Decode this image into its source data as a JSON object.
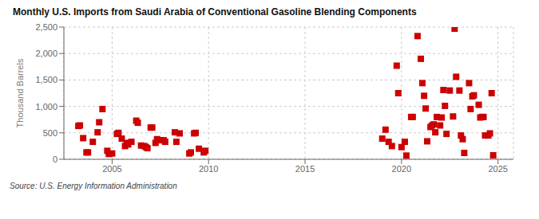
{
  "chart_data": {
    "type": "scatter",
    "title": "Monthly U.S. Imports from Saudi Arabia of Conventional Gasoline Blending Components",
    "ylabel": "Thousand Barrels",
    "annotations": [
      "Source: U.S. Energy Information Administration"
    ],
    "color": "#cc0000",
    "marker": "square",
    "grid": true,
    "xlim": [
      2002.5,
      2025.8
    ],
    "xticks": [
      2005,
      2010,
      2015,
      2020,
      2025
    ],
    "ylim": [
      0,
      2500
    ],
    "yticks": [
      0,
      500,
      {
        "value": 1000,
        "label": "1,000"
      },
      {
        "value": 1500,
        "label": "1,500"
      },
      {
        "value": 2000,
        "label": "2,000"
      },
      {
        "value": 2500,
        "label": "2,500"
      }
    ],
    "x": [
      2003.25,
      2003.33,
      2003.5,
      2003.67,
      2003.75,
      2004.0,
      2004.25,
      2004.33,
      2004.5,
      2004.75,
      2004.83,
      2005.0,
      2005.25,
      2005.33,
      2005.5,
      2005.67,
      2005.75,
      2005.83,
      2006.0,
      2006.25,
      2006.33,
      2006.5,
      2006.67,
      2006.75,
      2006.83,
      2007.0,
      2007.08,
      2007.25,
      2007.33,
      2007.5,
      2007.67,
      2007.75,
      2008.25,
      2008.33,
      2008.5,
      2009.0,
      2009.08,
      2009.25,
      2009.33,
      2009.5,
      2009.75,
      2009.83,
      2019.0,
      2019.17,
      2019.33,
      2019.5,
      2019.75,
      2019.83,
      2020.0,
      2020.17,
      2020.25,
      2020.5,
      2020.58,
      2020.83,
      2021.0,
      2021.08,
      2021.17,
      2021.25,
      2021.33,
      2021.5,
      2021.58,
      2021.67,
      2021.75,
      2021.83,
      2022.0,
      2022.08,
      2022.17,
      2022.25,
      2022.33,
      2022.5,
      2022.67,
      2022.75,
      2022.83,
      2023.0,
      2023.08,
      2023.17,
      2023.25,
      2023.5,
      2023.58,
      2023.67,
      2023.75,
      2024.0,
      2024.08,
      2024.17,
      2024.25,
      2024.33,
      2024.5,
      2024.58,
      2024.67,
      2024.75
    ],
    "values": [
      630,
      640,
      400,
      130,
      130,
      330,
      510,
      700,
      950,
      160,
      100,
      110,
      480,
      500,
      390,
      250,
      310,
      280,
      330,
      730,
      690,
      260,
      250,
      230,
      210,
      600,
      600,
      310,
      380,
      360,
      360,
      330,
      510,
      330,
      490,
      110,
      130,
      490,
      500,
      200,
      130,
      160,
      390,
      560,
      330,
      250,
      1770,
      1250,
      230,
      330,
      70,
      800,
      800,
      2330,
      1900,
      1440,
      1200,
      960,
      340,
      610,
      640,
      660,
      510,
      800,
      640,
      790,
      1310,
      1010,
      480,
      1300,
      810,
      2470,
      1560,
      1300,
      450,
      380,
      120,
      1440,
      950,
      1190,
      1210,
      1030,
      790,
      800,
      800,
      450,
      450,
      490,
      1250,
      75
    ]
  }
}
